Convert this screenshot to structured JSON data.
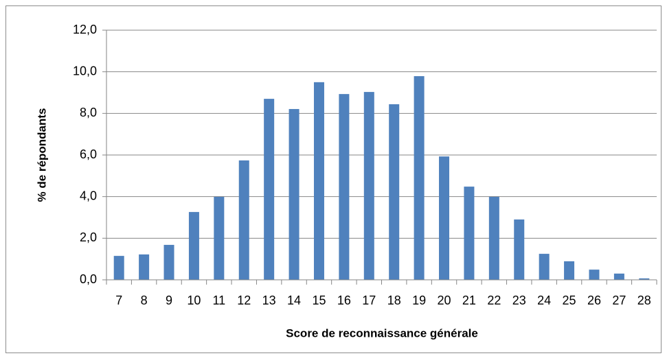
{
  "chart_data": {
    "type": "bar",
    "x_label": "Score de reconnaissance générale",
    "y_label": "% de répondants",
    "categories": [
      "7",
      "8",
      "9",
      "10",
      "11",
      "12",
      "13",
      "14",
      "15",
      "16",
      "17",
      "18",
      "19",
      "20",
      "21",
      "22",
      "23",
      "24",
      "25",
      "26",
      "27",
      "28"
    ],
    "values": [
      1.15,
      1.22,
      1.68,
      3.26,
      3.99,
      5.74,
      8.7,
      8.21,
      9.5,
      8.93,
      9.03,
      8.44,
      9.79,
      5.93,
      4.48,
      3.99,
      2.9,
      1.25,
      0.89,
      0.49,
      0.3,
      0.07
    ],
    "color": "#4f81bd",
    "ylim": [
      0,
      12
    ],
    "yticks": [
      {
        "value": 0,
        "label": "0,0"
      },
      {
        "value": 2,
        "label": "2,0"
      },
      {
        "value": 4,
        "label": "4,0"
      },
      {
        "value": 6,
        "label": "6,0"
      },
      {
        "value": 8,
        "label": "8,0"
      },
      {
        "value": 10,
        "label": "10,0"
      },
      {
        "value": 12,
        "label": "12,0"
      }
    ],
    "grid": true
  }
}
